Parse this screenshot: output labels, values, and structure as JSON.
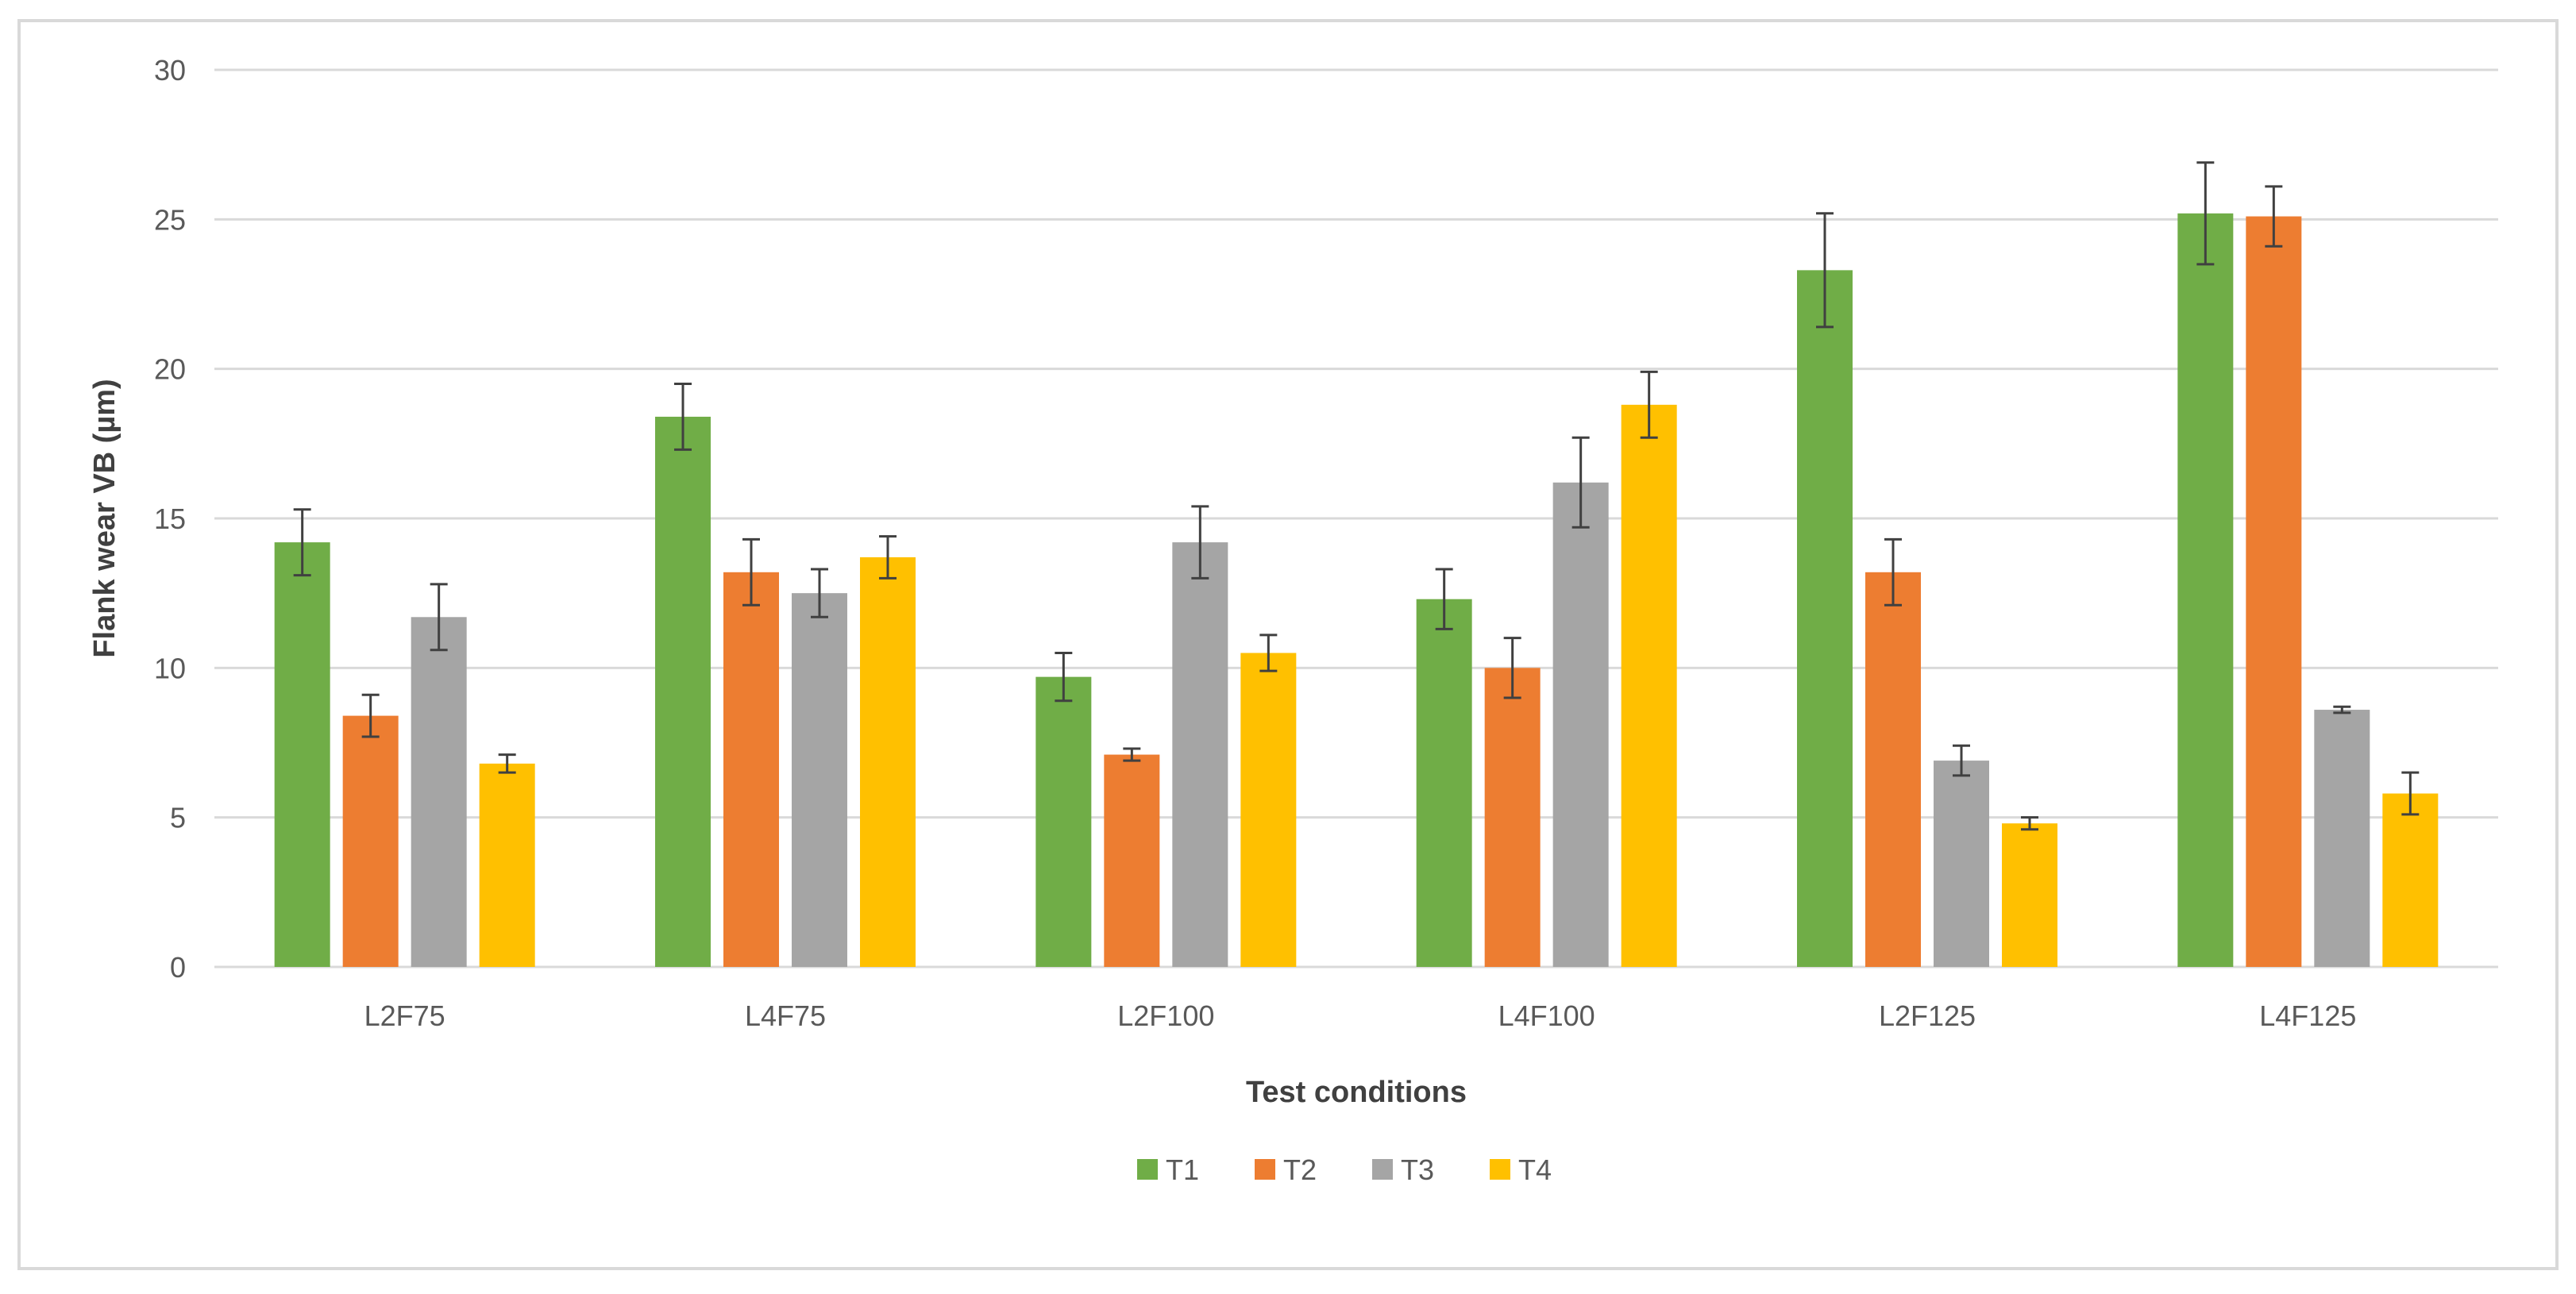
{
  "chart_data": {
    "type": "bar",
    "title": "",
    "xlabel": "Test conditions",
    "ylabel": "Flank wear VB (µm)",
    "ylim": [
      0,
      30
    ],
    "yticks": [
      0,
      5,
      10,
      15,
      20,
      25,
      30
    ],
    "grid": true,
    "legend_position": "bottom",
    "categories": [
      "L2F75",
      "L4F75",
      "L2F100",
      "L4F100",
      "L2F125",
      "L4F125"
    ],
    "series": [
      {
        "name": "T1",
        "color": "#70ad47",
        "values": [
          14.2,
          18.4,
          9.7,
          12.3,
          23.3,
          25.2
        ],
        "errors": [
          1.1,
          1.1,
          0.8,
          1.0,
          1.9,
          1.7
        ]
      },
      {
        "name": "T2",
        "color": "#ed7d31",
        "values": [
          8.4,
          13.2,
          7.1,
          10.0,
          13.2,
          25.1
        ],
        "errors": [
          0.7,
          1.1,
          0.2,
          1.0,
          1.1,
          1.0
        ]
      },
      {
        "name": "T3",
        "color": "#a5a5a5",
        "values": [
          11.7,
          12.5,
          14.2,
          16.2,
          6.9,
          8.6
        ],
        "errors": [
          1.1,
          0.8,
          1.2,
          1.5,
          0.5,
          0.1
        ]
      },
      {
        "name": "T4",
        "color": "#ffc000",
        "values": [
          6.8,
          13.7,
          10.5,
          18.8,
          4.8,
          5.8
        ],
        "errors": [
          0.3,
          0.7,
          0.6,
          1.1,
          0.2,
          0.7
        ]
      }
    ]
  },
  "colors": {
    "gridline": "#d9d9d9",
    "error_bar": "#404040",
    "frame": "#d9d9d9"
  }
}
